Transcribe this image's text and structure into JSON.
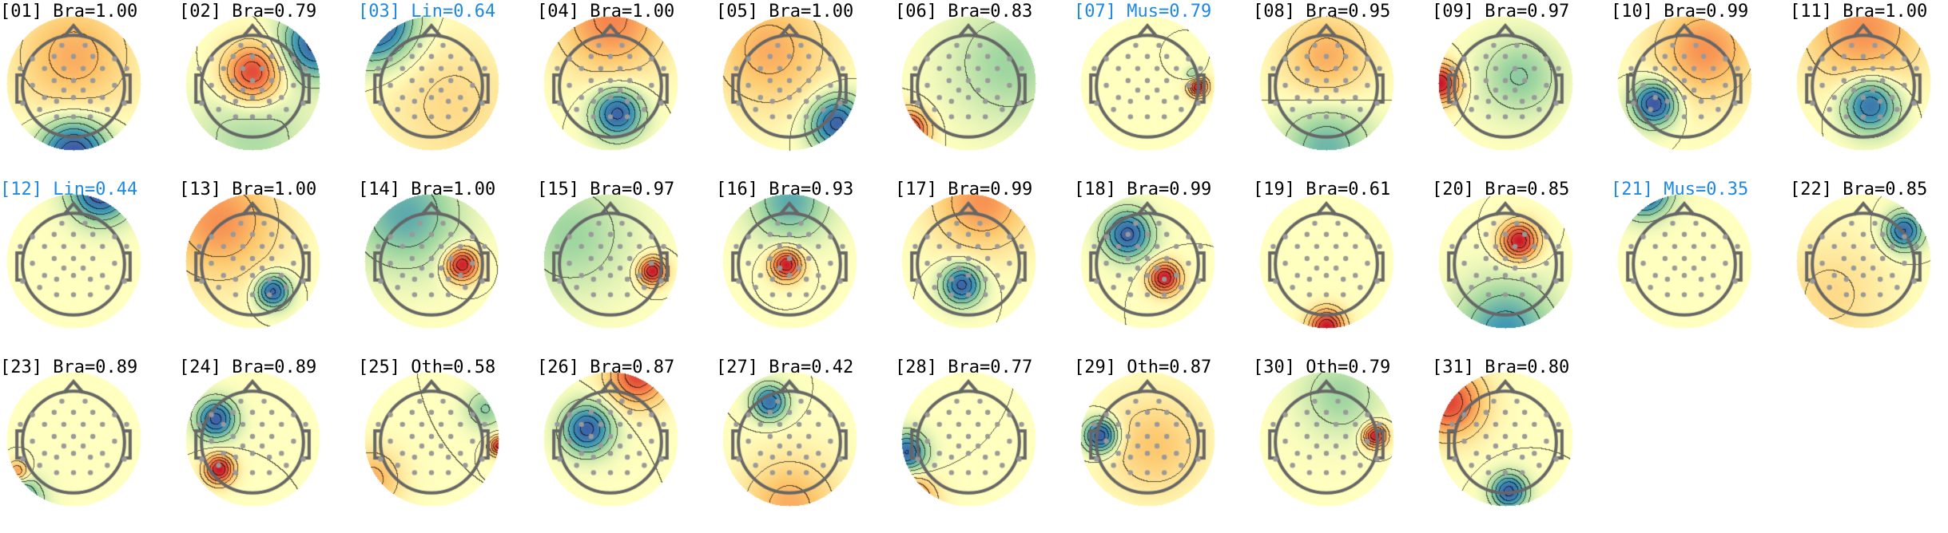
{
  "chart_data": {
    "type": "topomap",
    "colormap": "spectral-reversed",
    "highlight_color": "#1e88e5",
    "components": [
      {
        "label": "[01] Bra=1.00",
        "highlight": false
      },
      {
        "label": "[02] Bra=0.79",
        "highlight": false
      },
      {
        "label": "[03] Lin=0.64",
        "highlight": true
      },
      {
        "label": "[04] Bra=1.00",
        "highlight": false
      },
      {
        "label": "[05] Bra=1.00",
        "highlight": false
      },
      {
        "label": "[06] Bra=0.83",
        "highlight": false
      },
      {
        "label": "[07] Mus=0.79",
        "highlight": true
      },
      {
        "label": "[08] Bra=0.95",
        "highlight": false
      },
      {
        "label": "[09] Bra=0.97",
        "highlight": false
      },
      {
        "label": "[10] Bra=0.99",
        "highlight": false
      },
      {
        "label": "[11] Bra=1.00",
        "highlight": false
      },
      {
        "label": "[12] Lin=0.44",
        "highlight": true
      },
      {
        "label": "[13] Bra=1.00",
        "highlight": false
      },
      {
        "label": "[14] Bra=1.00",
        "highlight": false
      },
      {
        "label": "[15] Bra=0.97",
        "highlight": false
      },
      {
        "label": "[16] Bra=0.93",
        "highlight": false
      },
      {
        "label": "[17] Bra=0.99",
        "highlight": false
      },
      {
        "label": "[18] Bra=0.99",
        "highlight": false
      },
      {
        "label": "[19] Bra=0.61",
        "highlight": false
      },
      {
        "label": "[20] Bra=0.85",
        "highlight": false
      },
      {
        "label": "[21] Mus=0.35",
        "highlight": true
      },
      {
        "label": "[22] Bra=0.85",
        "highlight": false
      },
      {
        "label": "[23] Bra=0.89",
        "highlight": false
      },
      {
        "label": "[24] Bra=0.89",
        "highlight": false
      },
      {
        "label": "[25] Oth=0.58",
        "highlight": false
      },
      {
        "label": "[26] Bra=0.87",
        "highlight": false
      },
      {
        "label": "[27] Bra=0.42",
        "highlight": false
      },
      {
        "label": "[28] Bra=0.77",
        "highlight": false
      },
      {
        "label": "[29] Oth=0.87",
        "highlight": false
      },
      {
        "label": "[30] Oth=0.79",
        "highlight": false
      },
      {
        "label": "[31] Bra=0.80",
        "highlight": false
      }
    ]
  }
}
